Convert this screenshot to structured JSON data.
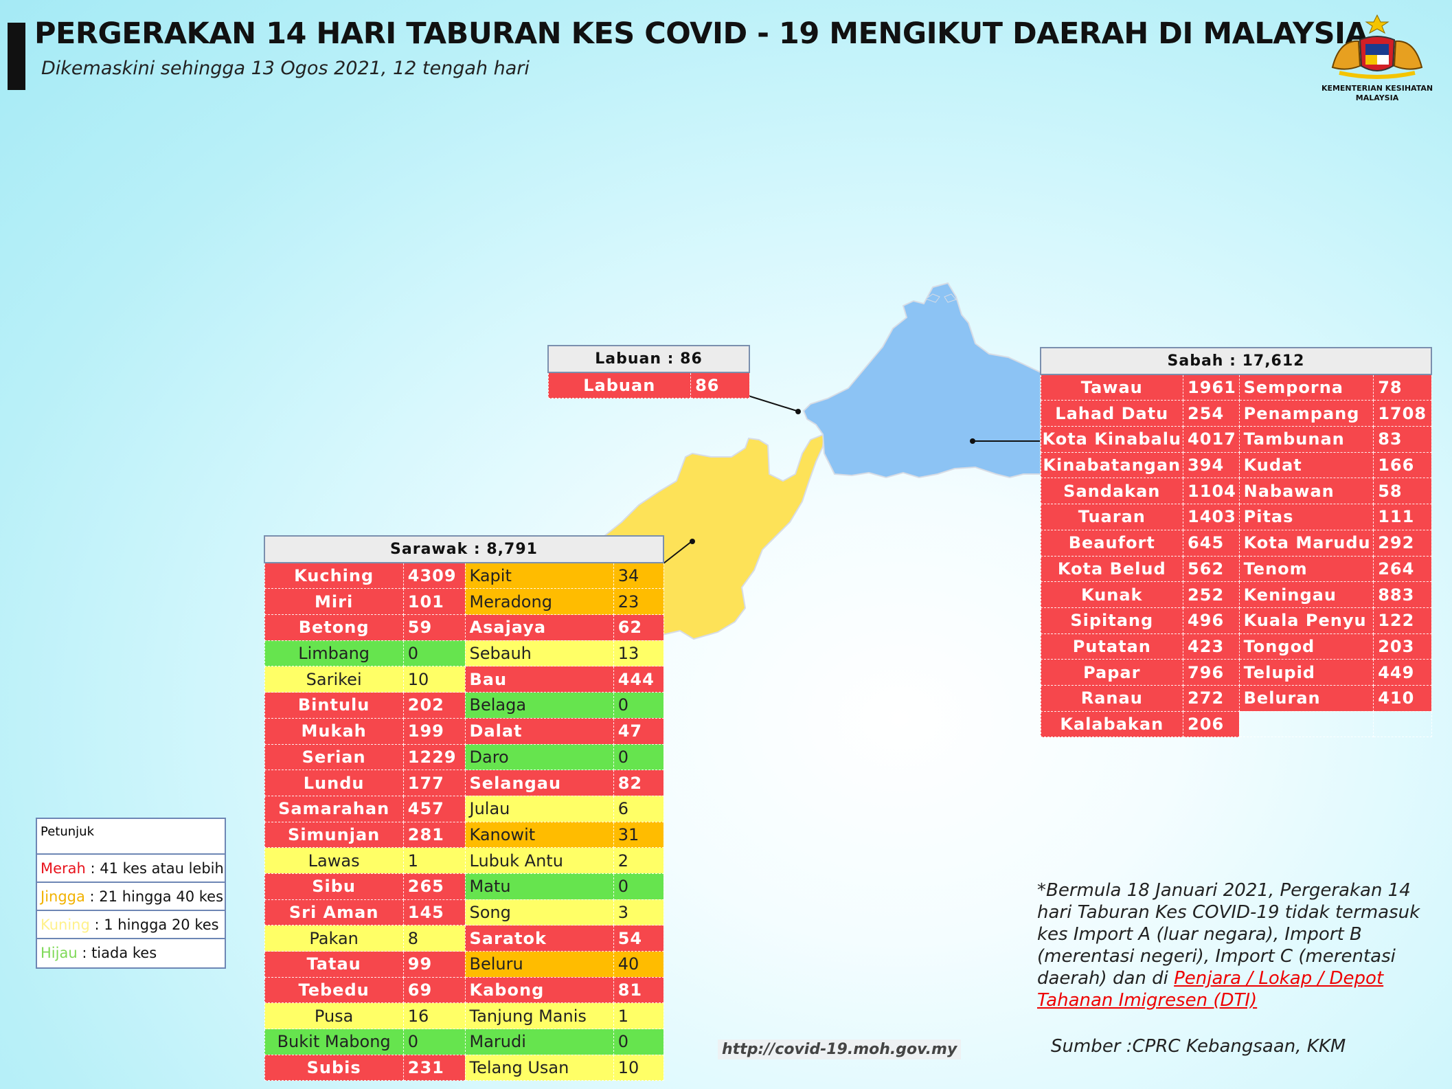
{
  "header": {
    "title": "PERGERAKAN 14 HARI TABURAN KES COVID - 19 MENGIKUT DAERAH DI MALAYSIA",
    "subtitle": "Dikemaskini sehingga 13 Ogos 2021, 12 tengah hari"
  },
  "logo": {
    "line1": "KEMENTERIAN KESIHATAN",
    "line2": "MALAYSIA"
  },
  "regions": {
    "sabah_color": "#8cc3f4",
    "sarawak_color": "#fde258"
  },
  "colors": {
    "merah": "#f6474c",
    "jingga": "#ffbc00",
    "kuning": "#ffff66",
    "hijau": "#66e44e"
  },
  "labuan": {
    "header": "Labuan : 86",
    "rows": [
      {
        "name": "Labuan",
        "value": "86",
        "level": "r"
      }
    ]
  },
  "sabah": {
    "header": "Sabah : 17,612",
    "rows": [
      {
        "name": "Tawau",
        "value": "1961",
        "level": "r",
        "name2": "Semporna",
        "value2": "78",
        "level2": "r"
      },
      {
        "name": "Lahad Datu",
        "value": "254",
        "level": "r",
        "name2": "Penampang",
        "value2": "1708",
        "level2": "r"
      },
      {
        "name": "Kota Kinabalu",
        "value": "4017",
        "level": "r",
        "name2": "Tambunan",
        "value2": "83",
        "level2": "r"
      },
      {
        "name": "Kinabatangan",
        "value": "394",
        "level": "r",
        "name2": "Kudat",
        "value2": "166",
        "level2": "r"
      },
      {
        "name": "Sandakan",
        "value": "1104",
        "level": "r",
        "name2": "Nabawan",
        "value2": "58",
        "level2": "r"
      },
      {
        "name": "Tuaran",
        "value": "1403",
        "level": "r",
        "name2": "Pitas",
        "value2": "111",
        "level2": "r"
      },
      {
        "name": "Beaufort",
        "value": "645",
        "level": "r",
        "name2": "Kota Marudu",
        "value2": "292",
        "level2": "r"
      },
      {
        "name": "Kota Belud",
        "value": "562",
        "level": "r",
        "name2": "Tenom",
        "value2": "264",
        "level2": "r"
      },
      {
        "name": "Kunak",
        "value": "252",
        "level": "r",
        "name2": "Keningau",
        "value2": "883",
        "level2": "r"
      },
      {
        "name": "Sipitang",
        "value": "496",
        "level": "r",
        "name2": "Kuala Penyu",
        "value2": "122",
        "level2": "r"
      },
      {
        "name": "Putatan",
        "value": "423",
        "level": "r",
        "name2": "Tongod",
        "value2": "203",
        "level2": "r"
      },
      {
        "name": "Papar",
        "value": "796",
        "level": "r",
        "name2": "Telupid",
        "value2": "449",
        "level2": "r"
      },
      {
        "name": "Ranau",
        "value": "272",
        "level": "r",
        "name2": "Beluran",
        "value2": "410",
        "level2": "r"
      },
      {
        "name": "Kalabakan",
        "value": "206",
        "level": "r",
        "name2": "",
        "value2": "",
        "level2": "e"
      }
    ]
  },
  "sarawak": {
    "header": "Sarawak : 8,791",
    "rows": [
      {
        "name": "Kuching",
        "value": "4309",
        "level": "r",
        "name2": "Kapit",
        "value2": "34",
        "level2": "o"
      },
      {
        "name": "Miri",
        "value": "101",
        "level": "r",
        "name2": "Meradong",
        "value2": "23",
        "level2": "o"
      },
      {
        "name": "Betong",
        "value": "59",
        "level": "r",
        "name2": "Asajaya",
        "value2": "62",
        "level2": "r"
      },
      {
        "name": "Limbang",
        "value": "0",
        "level": "g",
        "name2": "Sebauh",
        "value2": "13",
        "level2": "y"
      },
      {
        "name": "Sarikei",
        "value": "10",
        "level": "y",
        "name2": "Bau",
        "value2": "444",
        "level2": "r"
      },
      {
        "name": "Bintulu",
        "value": "202",
        "level": "r",
        "name2": "Belaga",
        "value2": "0",
        "level2": "g"
      },
      {
        "name": "Mukah",
        "value": "199",
        "level": "r",
        "name2": "Dalat",
        "value2": "47",
        "level2": "r"
      },
      {
        "name": "Serian",
        "value": "1229",
        "level": "r",
        "name2": "Daro",
        "value2": "0",
        "level2": "g"
      },
      {
        "name": "Lundu",
        "value": "177",
        "level": "r",
        "name2": "Selangau",
        "value2": "82",
        "level2": "r"
      },
      {
        "name": "Samarahan",
        "value": "457",
        "level": "r",
        "name2": "Julau",
        "value2": "6",
        "level2": "y"
      },
      {
        "name": "Simunjan",
        "value": "281",
        "level": "r",
        "name2": "Kanowit",
        "value2": "31",
        "level2": "o"
      },
      {
        "name": "Lawas",
        "value": "1",
        "level": "y",
        "name2": "Lubuk Antu",
        "value2": "2",
        "level2": "y"
      },
      {
        "name": "Sibu",
        "value": "265",
        "level": "r",
        "name2": "Matu",
        "value2": "0",
        "level2": "g"
      },
      {
        "name": "Sri Aman",
        "value": "145",
        "level": "r",
        "name2": "Song",
        "value2": "3",
        "level2": "y"
      },
      {
        "name": "Pakan",
        "value": "8",
        "level": "y",
        "name2": "Saratok",
        "value2": "54",
        "level2": "r"
      },
      {
        "name": "Tatau",
        "value": "99",
        "level": "r",
        "name2": "Beluru",
        "value2": "40",
        "level2": "o"
      },
      {
        "name": "Tebedu",
        "value": "69",
        "level": "r",
        "name2": "Kabong",
        "value2": "81",
        "level2": "r"
      },
      {
        "name": "Pusa",
        "value": "16",
        "level": "y",
        "name2": "Tanjung Manis",
        "value2": "1",
        "level2": "y"
      },
      {
        "name": "Bukit Mabong",
        "value": "0",
        "level": "g",
        "name2": "Marudi",
        "value2": "0",
        "level2": "g"
      },
      {
        "name": "Subis",
        "value": "231",
        "level": "r",
        "name2": "Telang Usan",
        "value2": "10",
        "level2": "y"
      }
    ]
  },
  "legend": {
    "title": "Petunjuk",
    "items": [
      {
        "key": "Merah",
        "desc": " : 41 kes atau lebih",
        "color": "#e8131c"
      },
      {
        "key": "Jingga",
        "desc": " : 21 hingga 40 kes",
        "color": "#f2b200"
      },
      {
        "key": "Kuning",
        "desc": " : 1 hingga 20 kes",
        "color": "#fff18a"
      },
      {
        "key": "Hijau",
        "desc": " : tiada kes",
        "color": "#7ed957"
      }
    ]
  },
  "note": {
    "text": "*Bermula 18 Januari 2021, Pergerakan 14 hari Taburan Kes COVID-19 tidak termasuk kes Import A (luar negara), Import B (merentasi negeri), Import C (merentasi daerah) dan di ",
    "link_text": "Penjara / Lokap / Depot Tahanan Imigresen (DTI)"
  },
  "source": "Sumber :CPRC Kebangsaan,  KKM",
  "url": "http://covid-19.moh.gov.my"
}
